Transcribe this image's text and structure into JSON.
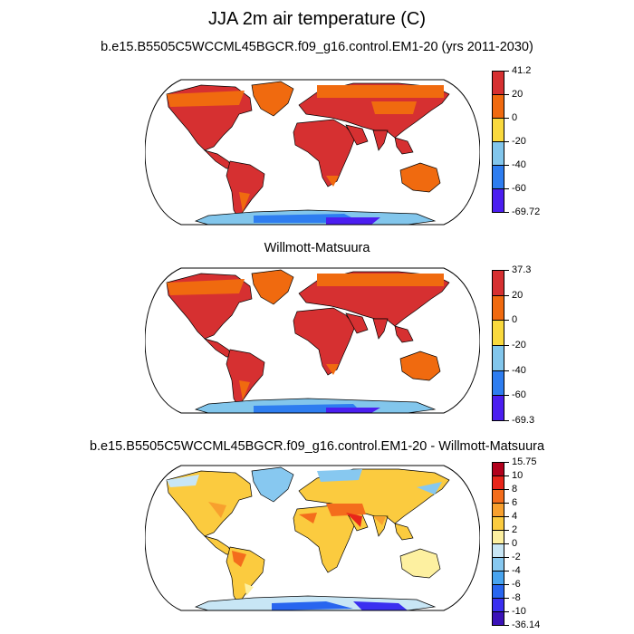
{
  "title": "JJA 2m air temperature (C)",
  "panels": [
    {
      "subtitle": "b.e15.B5505C5WCCML45BGCR.f09_g16.control.EM1-20 (yrs 2011-2030)",
      "colorbar": {
        "labels": [
          "41.2",
          "20",
          "0",
          "-20",
          "-40",
          "-60",
          "-69.72"
        ],
        "colors": [
          "#d63031",
          "#f06a0f",
          "#f9d93d",
          "#82c6ec",
          "#2e7df0",
          "#4b1ef0"
        ]
      }
    },
    {
      "subtitle": "Willmott-Matsuura",
      "colorbar": {
        "labels": [
          "37.3",
          "20",
          "0",
          "-20",
          "-40",
          "-60",
          "-69.3"
        ],
        "colors": [
          "#d63031",
          "#f06a0f",
          "#f9d93d",
          "#82c6ec",
          "#2e7df0",
          "#4b1ef0"
        ]
      }
    },
    {
      "subtitle": "b.e15.B5505C5WCCML45BGCR.f09_g16.control.EM1-20 - Willmott-Matsuura",
      "colorbar": {
        "labels": [
          "15.75",
          "10",
          "8",
          "6",
          "4",
          "2",
          "0",
          "-2",
          "-4",
          "-6",
          "-8",
          "-10",
          "-36.14"
        ],
        "colors": [
          "#b2001c",
          "#e8251a",
          "#f46d1c",
          "#f8a02e",
          "#fbcb3f",
          "#fdf0a0",
          "#c8e6f5",
          "#87c8f0",
          "#48a4ef",
          "#2865ef",
          "#3a2ff0",
          "#3b12b8"
        ]
      }
    }
  ]
}
